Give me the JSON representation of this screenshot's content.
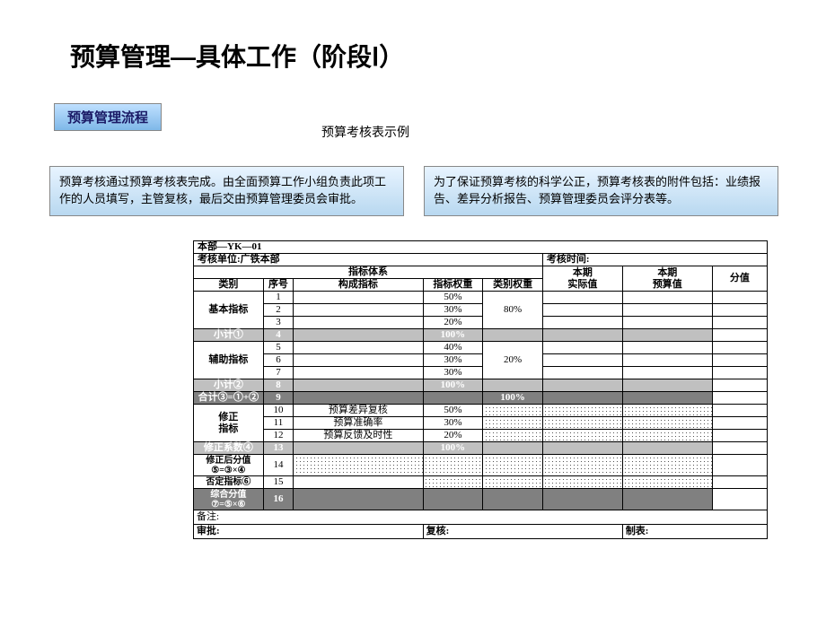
{
  "title": "预算管理—具体工作（阶段Ⅰ）",
  "section_badge": "预算管理流程",
  "subtitle": "预算考核表示例",
  "info_left": "预算考核通过预算考核表完成。由全面预算工作小组负责此项工作的人员填写，主管复核，最后交由预算管理委员会审批。",
  "info_right": "为了保证预算考核的科学公正，预算考核表的附件包括：业绩报告、差异分析报告、预算管理委员会评分表等。",
  "table": {
    "code": "本部—YK—01",
    "unit_label": "考核单位:广铁本部",
    "time_label": "考核时间:",
    "hdr_indicator_system": "指标体系",
    "hdr_category": "类别",
    "hdr_seq": "序号",
    "hdr_component": "构成指标",
    "hdr_ind_weight": "指标权重",
    "hdr_cat_weight": "类别权重",
    "hdr_actual": "本期\n实际值",
    "hdr_budget": "本期\n预算值",
    "hdr_score": "分值",
    "cat_basic": "基本指标",
    "cat_aux": "辅助指标",
    "cat_correct": "修正\n指标",
    "subtotal1": "小计①",
    "subtotal2": "小计②",
    "total3": "合计③=①+②",
    "coeff4": "修正系数④",
    "after5": "修正后分值\n⑤=③×④",
    "veto6": "否定指标⑥",
    "comp7": "综合分值\n⑦=⑤×⑥",
    "remark": "备注:",
    "approve": "审批:",
    "review": "复核:",
    "compile": "制表:",
    "r1": {
      "seq": "1",
      "w": "50%"
    },
    "r2": {
      "seq": "2",
      "w": "30%"
    },
    "r3": {
      "seq": "3",
      "w": "20%"
    },
    "cw_basic": "80%",
    "r4": {
      "seq": "4",
      "w": "100%"
    },
    "r5": {
      "seq": "5",
      "w": "40%"
    },
    "r6": {
      "seq": "6",
      "w": "30%"
    },
    "r7": {
      "seq": "7",
      "w": "30%"
    },
    "cw_aux": "20%",
    "r8": {
      "seq": "8",
      "w": "100%"
    },
    "r9": {
      "seq": "9",
      "w": "100%"
    },
    "r10": {
      "seq": "10",
      "comp": "预算差异复核",
      "w": "50%"
    },
    "r11": {
      "seq": "11",
      "comp": "预算准确率",
      "w": "30%"
    },
    "r12": {
      "seq": "12",
      "comp": "预算反馈及时性",
      "w": "20%"
    },
    "r13": {
      "seq": "13",
      "w": "100%"
    },
    "r14": {
      "seq": "14"
    },
    "r15": {
      "seq": "15"
    },
    "r16": {
      "seq": "16"
    }
  },
  "colors": {
    "badge_top": "#bfe0ff",
    "badge_bot": "#7fb8e8",
    "info_top": "#e8f4ff",
    "info_bot": "#b8d8f0",
    "gray": "#c0c0c0",
    "dgray": "#808080"
  }
}
